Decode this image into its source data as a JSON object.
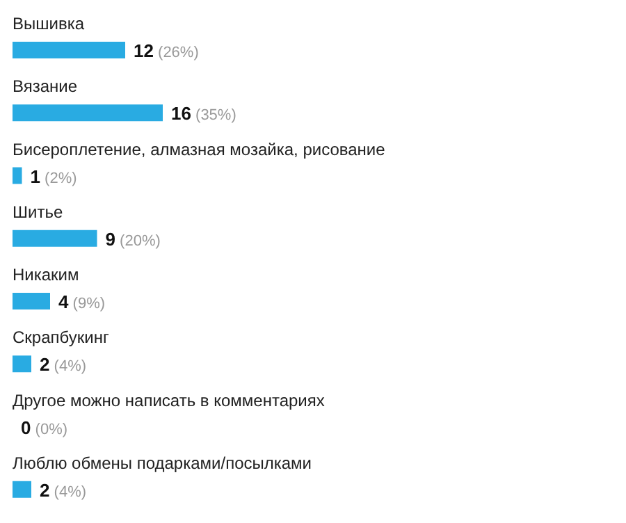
{
  "chart_data": {
    "type": "bar",
    "orientation": "horizontal",
    "categories": [
      "Вышивка",
      "Вязание",
      "Бисероплетение, алмазная мозайка, рисование",
      "Шитье",
      "Никаким",
      "Скрапбукинг",
      "Другое можно написать в комментариях",
      "Люблю обмены подарками/посылками"
    ],
    "values": [
      12,
      16,
      1,
      9,
      4,
      2,
      0,
      2
    ],
    "value_labels": [
      "12 (26%)",
      "16 (35%)",
      "1 (2%)",
      "9 (20%)",
      "4 (9%)",
      "2 (4%)",
      "0 (0%)",
      "2 (4%)"
    ],
    "color": "#29abe2"
  }
}
